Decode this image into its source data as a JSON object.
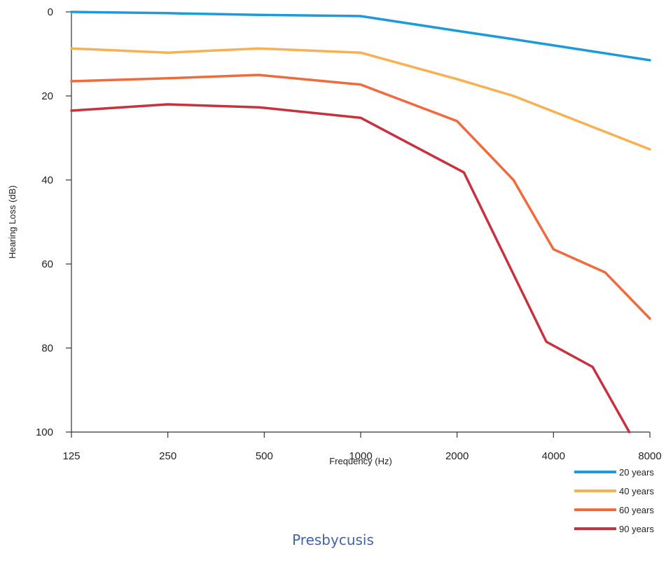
{
  "caption": "Presbycusis",
  "chart_data": {
    "type": "line",
    "title": "",
    "xlabel": "Frequency (Hz)",
    "ylabel": "Hearing Loss (dB)",
    "x_scale": "log2",
    "x_ticks": [
      125,
      250,
      500,
      1000,
      2000,
      4000,
      8000
    ],
    "x_tick_labels": [
      "125",
      "250",
      "500",
      "1000",
      "2000",
      "4000",
      "8000"
    ],
    "xlim": [
      125,
      8000
    ],
    "ylim": [
      0,
      100
    ],
    "y_inverted": true,
    "y_ticks": [
      0,
      20,
      40,
      60,
      80,
      100
    ],
    "y_tick_labels": [
      "0",
      "20",
      "40",
      "60",
      "80",
      "100"
    ],
    "grid": false,
    "legend_position": "bottom-right",
    "series": [
      {
        "name": "20 years",
        "color": "#1e9bd7",
        "x": [
          125,
          250,
          480,
          1000,
          2000,
          3000,
          8000
        ],
        "y": [
          0,
          0.3,
          0.7,
          1,
          4.5,
          6.5,
          11.5
        ]
      },
      {
        "name": "40 years",
        "color": "#f8b152",
        "x": [
          125,
          250,
          480,
          1000,
          2000,
          3000,
          8000
        ],
        "y": [
          8.7,
          9.7,
          8.7,
          9.7,
          16,
          20,
          32.7
        ]
      },
      {
        "name": "60 years",
        "color": "#ef6a3c",
        "x": [
          125,
          250,
          480,
          1000,
          2000,
          3000,
          4000,
          5800,
          8000
        ],
        "y": [
          16.5,
          15.8,
          15,
          17.3,
          26,
          40,
          56.5,
          62,
          73
        ]
      },
      {
        "name": "90 years",
        "color": "#c8323f",
        "x": [
          125,
          250,
          480,
          1000,
          2100,
          3800,
          5300,
          6900
        ],
        "y": [
          23.5,
          22,
          22.7,
          25.2,
          38.2,
          78.5,
          84.5,
          100
        ]
      }
    ]
  }
}
